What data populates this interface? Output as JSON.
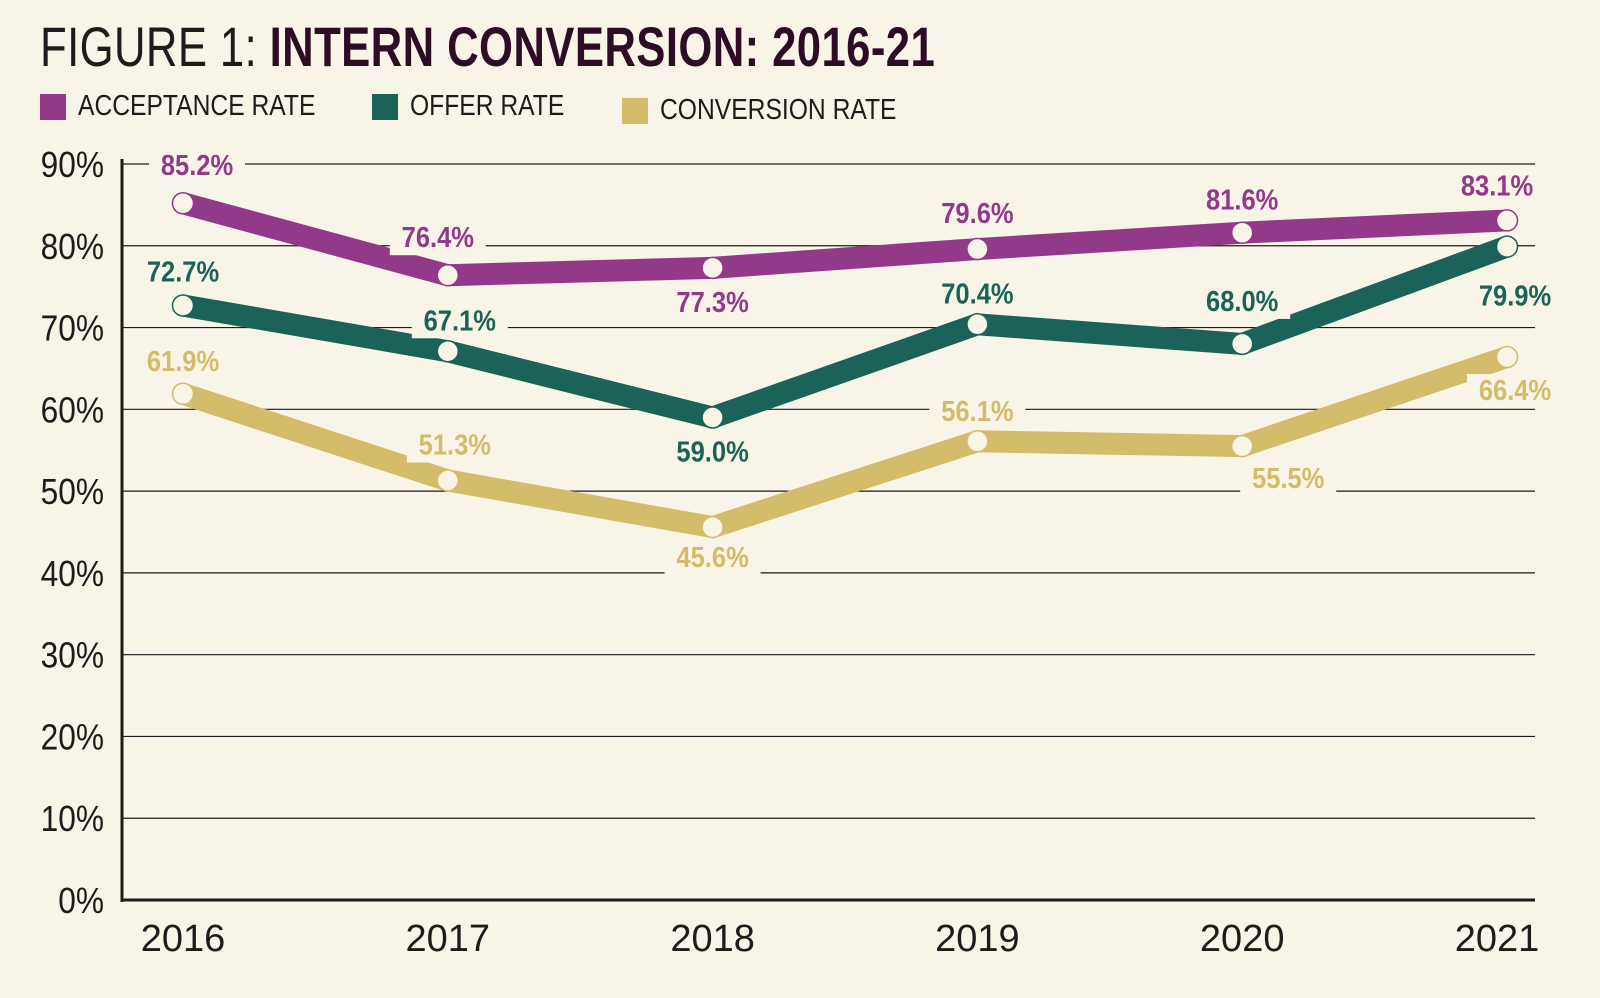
{
  "chart_data": {
    "type": "line",
    "title_prefix": "FIGURE 1:",
    "title": "INTERN CONVERSION: 2016-21",
    "categories": [
      "2016",
      "2017",
      "2018",
      "2019",
      "2020",
      "2021"
    ],
    "ylim": [
      0,
      90
    ],
    "yticks": [
      "0%",
      "10%",
      "20%",
      "30%",
      "40%",
      "50%",
      "60%",
      "70%",
      "80%",
      "90%"
    ],
    "grid": true,
    "legend_position": "top-left",
    "series": [
      {
        "name": "ACCEPTANCE RATE",
        "color": "#93398a",
        "values": [
          85.2,
          76.4,
          77.3,
          79.6,
          81.6,
          83.1
        ],
        "labels": [
          "85.2%",
          "76.4%",
          "77.3%",
          "79.6%",
          "81.6%",
          "83.1%"
        ]
      },
      {
        "name": "OFFER RATE",
        "color": "#1b6358",
        "values": [
          72.7,
          67.1,
          59.0,
          70.4,
          68.0,
          79.9
        ],
        "labels": [
          "72.7%",
          "67.1%",
          "59.0%",
          "70.4%",
          "68.0%",
          "79.9%"
        ]
      },
      {
        "name": "CONVERSION RATE",
        "color": "#d4bd6a",
        "values": [
          61.9,
          51.3,
          45.6,
          56.1,
          55.5,
          66.4
        ],
        "labels": [
          "61.9%",
          "51.3%",
          "45.6%",
          "56.1%",
          "55.5%",
          "66.4%"
        ]
      }
    ]
  }
}
